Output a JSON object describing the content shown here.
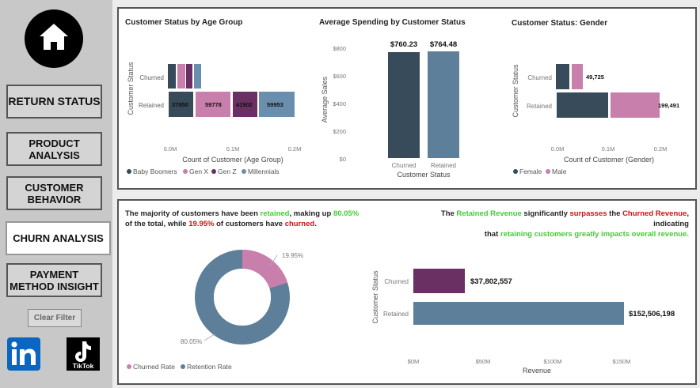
{
  "nav": {
    "return_status": "RETURN STATUS",
    "product_analysis": "PRODUCT ANALYSIS",
    "customer_behavior": "CUSTOMER BEHAVIOR",
    "churn_analysis": "CHURN ANALYSIS",
    "payment_method": "PAYMENT METHOD INSIGHT",
    "clear_filter": "Clear Filter",
    "tiktok_label": "TikTok"
  },
  "charts": {
    "age": {
      "title": "Customer Status by Age Group",
      "ylabel": "Customer Status",
      "xlabel": "Count of Customer (Age Group)",
      "categories": [
        "Churned",
        "Retained"
      ],
      "ticks": [
        "0.0M",
        "0.1M",
        "0.2M"
      ],
      "legend": [
        "Baby Boomers",
        "Gen X",
        "Gen Z",
        "Millennials"
      ],
      "labels": [
        "37858",
        "59778",
        "41902",
        "59953"
      ]
    },
    "spend": {
      "title": "Average Spending by Customer Status",
      "ylabel": "Average Sales",
      "xlabel": "Customer Status",
      "ticks": [
        "$800",
        "$600",
        "$400",
        "$200",
        "$0"
      ],
      "categories": [
        "Churned",
        "Retained"
      ],
      "labels": [
        "$760.23",
        "$764.48"
      ]
    },
    "gender": {
      "title": "Customer Status: Gender",
      "ylabel": "Customer Status",
      "xlabel": "Count of Customer (Gender)",
      "categories": [
        "Churned",
        "Retained"
      ],
      "ticks": [
        "0.0M",
        "0.1M",
        "0.2M"
      ],
      "legend": [
        "Female",
        "Male"
      ],
      "labels": [
        "49,725",
        "199,491"
      ]
    },
    "donut": {
      "labels": [
        "19.95%",
        "80.05%"
      ],
      "legend": [
        "Churned Rate",
        "Retention Rate"
      ]
    },
    "revenue": {
      "ylabel": "Customer Status",
      "xlabel": "Revenue",
      "categories": [
        "Churned",
        "Retained"
      ],
      "ticks": [
        "$0M",
        "$50M",
        "$100M",
        "$150M"
      ],
      "labels": [
        "$37,802,557",
        "$152,506,198"
      ]
    }
  },
  "insights": {
    "left": {
      "a": "The majority of customers have been ",
      "b": "retained",
      "c": ", making up ",
      "d": "80.05%",
      "e": "of the total, while ",
      "f": "19.95%",
      "g": " of customers have ",
      "h": "churned",
      "i": "."
    },
    "right": {
      "a": "The ",
      "b": "Retained Revenue",
      "c": " significantly ",
      "d": "surpasses",
      "e": " the ",
      "f": "Churned Revenue",
      "g": ", indicating",
      "h": "that ",
      "i": "retaining customers greatly impacts overall revenue."
    }
  },
  "chart_data": [
    {
      "type": "bar",
      "orientation": "horizontal",
      "stacked": true,
      "title": "Customer Status by Age Group",
      "xlabel": "Count of Customer (Age Group)",
      "ylabel": "Customer Status",
      "categories": [
        "Churned",
        "Retained"
      ],
      "series": [
        {
          "name": "Baby Boomers",
          "values": [
            9000,
            37858
          ]
        },
        {
          "name": "Gen X",
          "values": [
            14000,
            59778
          ]
        },
        {
          "name": "Gen Z",
          "values": [
            10000,
            41902
          ]
        },
        {
          "name": "Millennials",
          "values": [
            14000,
            59953
          ]
        }
      ],
      "xlim": [
        0,
        200000
      ],
      "legend": "bottom",
      "colors": [
        "#374b5a",
        "#c97fac",
        "#6a2f63",
        "#6a8fae"
      ]
    },
    {
      "type": "bar",
      "title": "Average Spending by Customer Status",
      "xlabel": "Customer Status",
      "ylabel": "Average Sales",
      "categories": [
        "Churned",
        "Retained"
      ],
      "values": [
        760.23,
        764.48
      ],
      "ylim": [
        0,
        800
      ],
      "colors": [
        "#374b5a",
        "#5e7f9a"
      ]
    },
    {
      "type": "bar",
      "orientation": "horizontal",
      "stacked": true,
      "title": "Customer Status: Gender",
      "xlabel": "Count of Customer (Gender)",
      "ylabel": "Customer Status",
      "categories": [
        "Churned",
        "Retained"
      ],
      "series": [
        {
          "name": "Female",
          "values": [
            24000,
            100000
          ]
        },
        {
          "name": "Male",
          "values": [
            25725,
            99491
          ]
        }
      ],
      "xlim": [
        0,
        200000
      ],
      "legend": "bottom",
      "colors": [
        "#374b5a",
        "#c97fac"
      ]
    },
    {
      "type": "pie",
      "donut": true,
      "categories": [
        "Churned Rate",
        "Retention Rate"
      ],
      "values": [
        19.95,
        80.05
      ],
      "legend": "bottom",
      "colors": [
        "#c97fac",
        "#5e7f9a"
      ]
    },
    {
      "type": "bar",
      "orientation": "horizontal",
      "xlabel": "Revenue",
      "ylabel": "Customer Status",
      "categories": [
        "Churned",
        "Retained"
      ],
      "values": [
        37802557,
        152506198
      ],
      "xlim": [
        0,
        160000000
      ],
      "colors": [
        "#6a2f63",
        "#5e7f9a"
      ]
    }
  ]
}
